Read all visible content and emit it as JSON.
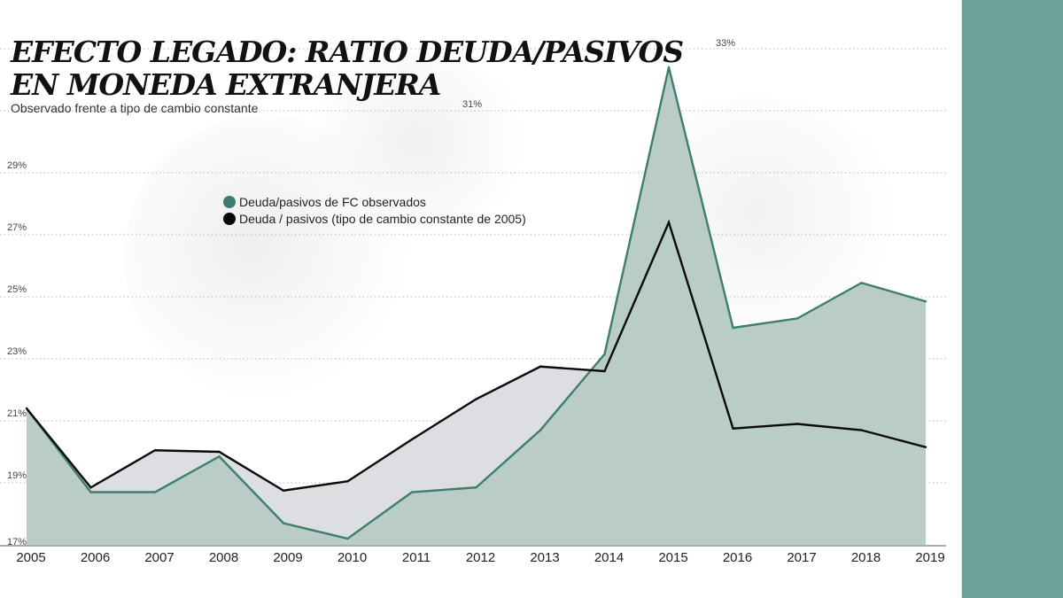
{
  "colors": {
    "observed_line": "#3e7e70",
    "observed_fill": "#b9ccc6",
    "constant_line": "#0a0a0a",
    "gap_fill": "#d8dade",
    "grid": "#b7b7b7",
    "side_band": "#6ea199"
  },
  "header": {
    "title_line1": "EFECTO LEGADO: RATIO DEUDA/PASIVOS",
    "title_line2": "EN MONEDA EXTRANJERA",
    "subtitle": "Observado frente a tipo de cambio constante"
  },
  "chart_data": {
    "type": "area",
    "title": "EFECTO LEGADO: RATIO DEUDA/PASIVOS EN MONEDA EXTRANJERA",
    "subtitle": "Observado frente a tipo de cambio constante",
    "x": [
      "2005",
      "2006",
      "2007",
      "2008",
      "2009",
      "2010",
      "2011",
      "2012",
      "2013",
      "2014",
      "2015",
      "2016",
      "2017",
      "2018",
      "2019"
    ],
    "ylim": [
      17,
      33
    ],
    "y_ticks": [
      17,
      19,
      21,
      23,
      25,
      27,
      29,
      31,
      33
    ],
    "y_tick_labels": [
      "17%",
      "19%",
      "21%",
      "23%",
      "25%",
      "27%",
      "29%",
      "31%",
      "33%"
    ],
    "grid": true,
    "legend_position": "upper-left",
    "series": [
      {
        "name": "Deuda/pasivos de FC observados",
        "color": "#3e7e70",
        "values": [
          21.4,
          18.7,
          18.7,
          19.85,
          17.7,
          17.2,
          18.7,
          18.85,
          20.7,
          23.15,
          32.4,
          24.0,
          24.3,
          25.45,
          24.85
        ]
      },
      {
        "name": "Deuda / pasivos (tipo de cambio constante de 2005)",
        "color": "#0a0a0a",
        "values": [
          21.4,
          18.85,
          20.05,
          20.0,
          18.75,
          19.05,
          20.4,
          21.7,
          22.75,
          22.6,
          27.4,
          20.75,
          20.9,
          20.7,
          20.15
        ]
      }
    ]
  }
}
